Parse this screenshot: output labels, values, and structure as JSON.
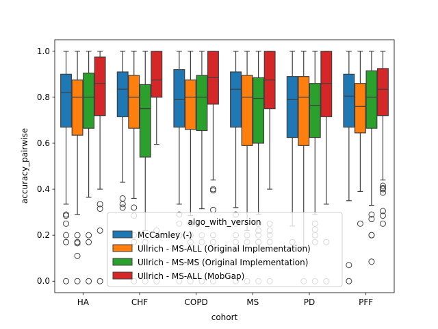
{
  "chart_data": {
    "type": "box",
    "xlabel": "cohort",
    "ylabel": "accuracy_pairwise",
    "ylim": [
      -0.05,
      1.05
    ],
    "yticks": [
      "0.0",
      "0.2",
      "0.4",
      "0.6",
      "0.8",
      "1.0"
    ],
    "grid": false,
    "categories": [
      "HA",
      "CHF",
      "COPD",
      "MS",
      "PD",
      "PFF"
    ],
    "legend": {
      "title": "algo_with_version",
      "placement": "lower-center"
    },
    "series": [
      {
        "name": "McCamley (-)",
        "color": "#1f77b4",
        "boxes": [
          {
            "q1": 0.67,
            "median": 0.82,
            "q3": 0.9,
            "whislo": 0.335,
            "whishi": 1.0,
            "fliers": [
              0.29,
              0.285,
              0.25,
              0.2,
              0.17,
              0.0
            ]
          },
          {
            "q1": 0.715,
            "median": 0.835,
            "q3": 0.91,
            "whislo": 0.43,
            "whishi": 1.0,
            "fliers": [
              0.36,
              0.335,
              0.32
            ]
          },
          {
            "q1": 0.67,
            "median": 0.79,
            "q3": 0.92,
            "whislo": 0.335,
            "whishi": 1.0,
            "fliers": [
              0.29,
              0.25,
              0.2,
              0.0
            ]
          },
          {
            "q1": 0.67,
            "median": 0.835,
            "q3": 0.91,
            "whislo": 0.32,
            "whishi": 1.0,
            "fliers": [
              0.29,
              0.25,
              0.2,
              0.17,
              0.0
            ]
          },
          {
            "q1": 0.625,
            "median": 0.79,
            "q3": 0.89,
            "whislo": 0.24,
            "whishi": 1.0,
            "fliers": [
              0.17
            ]
          },
          {
            "q1": 0.67,
            "median": 0.805,
            "q3": 0.9,
            "whislo": 0.35,
            "whishi": 1.0,
            "fliers": [
              0.07,
              0.0
            ]
          }
        ]
      },
      {
        "name": "Ullrich - MS-ALL (Original Implementation)",
        "color": "#ff7f0e",
        "boxes": [
          {
            "q1": 0.635,
            "median": 0.8,
            "q3": 0.875,
            "whislo": 0.29,
            "whishi": 1.0,
            "fliers": [
              0.2,
              0.17,
              0.165,
              0.11,
              0.0
            ]
          },
          {
            "q1": 0.665,
            "median": 0.8,
            "q3": 0.895,
            "whislo": 0.36,
            "whishi": 1.0,
            "fliers": [
              0.32,
              0.285,
              0.2,
              0.17,
              0.0
            ]
          },
          {
            "q1": 0.66,
            "median": 0.8,
            "q3": 0.875,
            "whislo": 0.285,
            "whishi": 1.0,
            "fliers": [
              0.25,
              0.2,
              0.17,
              0.0
            ]
          },
          {
            "q1": 0.59,
            "median": 0.8,
            "q3": 0.895,
            "whislo": 0.22,
            "whishi": 1.0,
            "fliers": [
              0.2,
              0.17,
              0.0
            ]
          },
          {
            "q1": 0.59,
            "median": 0.8,
            "q3": 0.89,
            "whislo": 0.15,
            "whishi": 1.0,
            "fliers": [
              0.0
            ]
          },
          {
            "q1": 0.645,
            "median": 0.76,
            "q3": 0.86,
            "whislo": 0.39,
            "whishi": 1.0,
            "fliers": [
              0.25
            ]
          }
        ]
      },
      {
        "name": "Ullrich - MS-MS (Original Implementation)",
        "color": "#2ca02c",
        "boxes": [
          {
            "q1": 0.665,
            "median": 0.8,
            "q3": 0.905,
            "whislo": 0.365,
            "whishi": 1.0,
            "fliers": [
              0.2,
              0.17,
              0.0
            ]
          },
          {
            "q1": 0.54,
            "median": 0.75,
            "q3": 0.855,
            "whislo": 0.22,
            "whishi": 1.0,
            "fliers": [
              0.17,
              0.0
            ]
          },
          {
            "q1": 0.655,
            "median": 0.8,
            "q3": 0.895,
            "whislo": 0.315,
            "whishi": 1.0,
            "fliers": [
              0.2,
              0.17,
              0.0
            ]
          },
          {
            "q1": 0.6,
            "median": 0.795,
            "q3": 0.885,
            "whislo": 0.29,
            "whishi": 1.0,
            "fliers": [
              0.25,
              0.22,
              0.2,
              0.17,
              0.0
            ]
          },
          {
            "q1": 0.625,
            "median": 0.765,
            "q3": 0.86,
            "whislo": 0.29,
            "whishi": 1.0,
            "fliers": [
              0.25,
              0.225,
              0.2,
              0.17,
              0.0
            ]
          },
          {
            "q1": 0.665,
            "median": 0.8,
            "q3": 0.915,
            "whislo": 0.33,
            "whishi": 1.0,
            "fliers": [
              0.29,
              0.27,
              0.2,
              0.2,
              0.085
            ]
          }
        ]
      },
      {
        "name": "Ullrich - MS-ALL (MobGap)",
        "color": "#d62728",
        "boxes": [
          {
            "q1": 0.72,
            "median": 0.86,
            "q3": 0.975,
            "whislo": 0.4,
            "whishi": 1.0,
            "fliers": [
              0.335,
              0.315,
              0.22,
              0.0
            ]
          },
          {
            "q1": 0.8,
            "median": 0.875,
            "q3": 1.0,
            "whislo": 0.595,
            "whishi": 1.0,
            "fliers": [
              0.22,
              0.0
            ]
          },
          {
            "q1": 0.77,
            "median": 0.885,
            "q3": 1.0,
            "whislo": 0.44,
            "whishi": 1.0,
            "fliers": [
              0.4,
              0.395,
              0.31,
              0.2,
              0.17,
              0.0
            ]
          },
          {
            "q1": 0.75,
            "median": 0.875,
            "q3": 1.0,
            "whislo": 0.4,
            "whishi": 1.0,
            "fliers": [
              0.25,
              0.22,
              0.2,
              0.17,
              0.0
            ]
          },
          {
            "q1": 0.715,
            "median": 0.86,
            "q3": 1.0,
            "whislo": 0.335,
            "whishi": 1.0,
            "fliers": [
              0.17,
              0.0
            ]
          },
          {
            "q1": 0.72,
            "median": 0.835,
            "q3": 0.925,
            "whislo": 0.44,
            "whishi": 1.0,
            "fliers": [
              0.415,
              0.405,
              0.4,
              0.385,
              0.305,
              0.285,
              0.25
            ]
          }
        ]
      }
    ]
  }
}
